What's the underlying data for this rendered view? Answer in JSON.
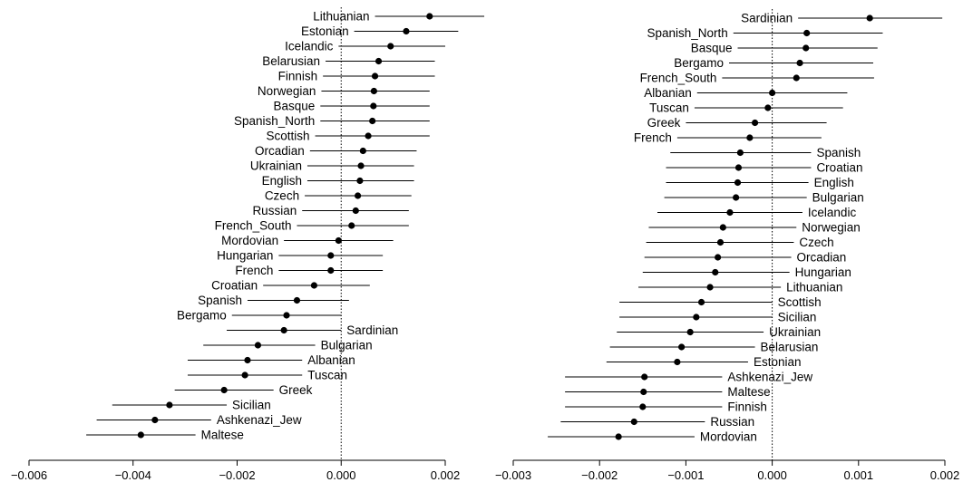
{
  "chart_data": [
    {
      "type": "scatter",
      "title": "",
      "xlabel": "",
      "ylabel": "",
      "xlim": [
        -0.006,
        0.002
      ],
      "xticks": [
        -0.006,
        -0.004,
        -0.002,
        0.0,
        0.002
      ],
      "tick_labels": [
        "−0.006",
        "−0.004",
        "−0.002",
        "0.000",
        "0.002"
      ],
      "reference_line": 0.0,
      "series": [
        {
          "labels": [
            "Lithuanian",
            "Estonian",
            "Icelandic",
            "Belarusian",
            "Finnish",
            "Norwegian",
            "Basque",
            "Spanish_North",
            "Scottish",
            "Orcadian",
            "Ukrainian",
            "English",
            "Czech",
            "Russian",
            "French_South",
            "Mordovian",
            "Hungarian",
            "French",
            "Croatian",
            "Spanish",
            "Bergamo",
            "Sardinian",
            "Bulgarian",
            "Albanian",
            "Tuscan",
            "Greek",
            "Sicilian",
            "Ashkenazi_Jew",
            "Maltese"
          ],
          "estimate": [
            0.0017,
            0.00125,
            0.00095,
            0.00072,
            0.00065,
            0.00063,
            0.00062,
            0.0006,
            0.00052,
            0.00042,
            0.00038,
            0.00036,
            0.00032,
            0.00028,
            0.0002,
            -5e-05,
            -0.0002,
            -0.0002,
            -0.00052,
            -0.00085,
            -0.00105,
            -0.0011,
            -0.0016,
            -0.0018,
            -0.00185,
            -0.00225,
            -0.0033,
            -0.00358,
            -0.00385
          ],
          "lower": [
            0.00065,
            0.00025,
            -5e-05,
            -0.0003,
            -0.00035,
            -0.00038,
            -0.0004,
            -0.0004,
            -0.0005,
            -0.0006,
            -0.00065,
            -0.00065,
            -0.0007,
            -0.00075,
            -0.00085,
            -0.0011,
            -0.0012,
            -0.0012,
            -0.0015,
            -0.0018,
            -0.0021,
            -0.0022,
            -0.00265,
            -0.00295,
            -0.00295,
            -0.0032,
            -0.0044,
            -0.0047,
            -0.0049
          ],
          "upper": [
            0.00275,
            0.00225,
            0.002,
            0.0018,
            0.0018,
            0.0017,
            0.0017,
            0.0017,
            0.0017,
            0.00145,
            0.0014,
            0.0014,
            0.00135,
            0.0013,
            0.0013,
            0.001,
            0.0008,
            0.0008,
            0.00055,
            0.00015,
            0.0,
            0.0,
            -0.0005,
            -0.00075,
            -0.00075,
            -0.0013,
            -0.0022,
            -0.0025,
            -0.0028
          ],
          "label_side": [
            "L",
            "L",
            "L",
            "L",
            "L",
            "L",
            "L",
            "L",
            "L",
            "L",
            "L",
            "L",
            "L",
            "L",
            "L",
            "L",
            "L",
            "L",
            "L",
            "L",
            "L",
            "R",
            "R",
            "R",
            "R",
            "R",
            "R",
            "R",
            "R"
          ]
        }
      ]
    },
    {
      "type": "scatter",
      "title": "",
      "xlabel": "",
      "ylabel": "",
      "xlim": [
        -0.003,
        0.002
      ],
      "xticks": [
        -0.003,
        -0.002,
        -0.001,
        0.0,
        0.001,
        0.002
      ],
      "tick_labels": [
        "−0.003",
        "−0.002",
        "−0.001",
        "0.000",
        "0.001",
        "0.002"
      ],
      "reference_line": 0.0,
      "series": [
        {
          "labels": [
            "Sardinian",
            "Spanish_North",
            "Basque",
            "Bergamo",
            "French_South",
            "Albanian",
            "Tuscan",
            "Greek",
            "French",
            "Spanish",
            "Croatian",
            "English",
            "Bulgarian",
            "Icelandic",
            "Norwegian",
            "Czech",
            "Orcadian",
            "Hungarian",
            "Lithuanian",
            "Scottish",
            "Sicilian",
            "Ukrainian",
            "Belarusian",
            "Estonian",
            "Ashkenazi_Jew",
            "Maltese",
            "Finnish",
            "Russian",
            "Mordovian"
          ],
          "estimate": [
            0.00113,
            0.0004,
            0.00039,
            0.00032,
            0.00028,
            0.0,
            -5e-05,
            -0.0002,
            -0.00026,
            -0.00037,
            -0.00039,
            -0.0004,
            -0.00042,
            -0.00049,
            -0.00057,
            -0.0006,
            -0.00063,
            -0.00066,
            -0.00072,
            -0.00082,
            -0.00088,
            -0.00095,
            -0.00105,
            -0.0011,
            -0.00148,
            -0.00149,
            -0.0015,
            -0.0016,
            -0.00178
          ],
          "lower": [
            0.0003,
            -0.00045,
            -0.0004,
            -0.0005,
            -0.00058,
            -0.00087,
            -0.0009,
            -0.001,
            -0.0011,
            -0.00118,
            -0.00123,
            -0.00123,
            -0.00125,
            -0.00133,
            -0.00143,
            -0.00146,
            -0.00148,
            -0.0015,
            -0.00155,
            -0.00177,
            -0.00177,
            -0.0018,
            -0.00188,
            -0.00192,
            -0.0024,
            -0.0024,
            -0.0024,
            -0.00245,
            -0.0026
          ],
          "upper": [
            0.00197,
            0.00128,
            0.00122,
            0.00117,
            0.00118,
            0.00087,
            0.00082,
            0.00063,
            0.00057,
            0.00045,
            0.00045,
            0.00042,
            0.0004,
            0.00035,
            0.00028,
            0.00025,
            0.00022,
            0.0002,
            0.0001,
            0.0,
            0.0,
            -0.0001,
            -0.0002,
            -0.00028,
            -0.00058,
            -0.00058,
            -0.00058,
            -0.00078,
            -0.0009
          ],
          "label_side": [
            "L",
            "L",
            "L",
            "L",
            "L",
            "L",
            "L",
            "L",
            "L",
            "R",
            "R",
            "R",
            "R",
            "R",
            "R",
            "R",
            "R",
            "R",
            "R",
            "R",
            "R",
            "R",
            "R",
            "R",
            "R",
            "R",
            "R",
            "R",
            "R"
          ]
        }
      ]
    }
  ]
}
